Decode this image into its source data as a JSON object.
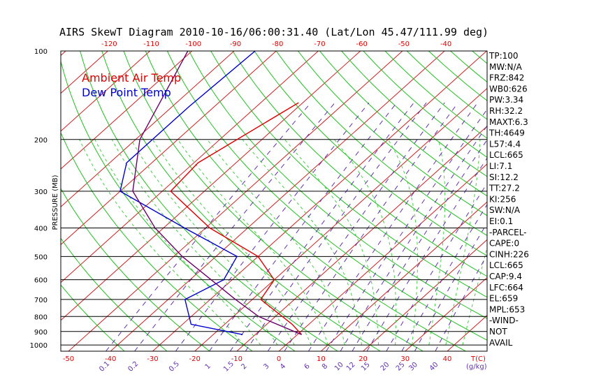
{
  "title": "AIRS SkewT Diagram 2010-10-16/06:00:31.40 (Lat/Lon 45.47/111.99 deg)",
  "chart_data": {
    "type": "line",
    "title": "AIRS SkewT Diagram 2010-10-16/06:00:31.40 (Lat/Lon 45.47/111.99 deg)",
    "ylabel": "PRESSURE (MB)",
    "xlabel": "T(C)",
    "mixing_ratio_unit": "(g/kg)",
    "pressure_levels": [
      100,
      200,
      300,
      400,
      500,
      600,
      700,
      800,
      900,
      1000
    ],
    "pressure_tick_labels": [
      "100",
      "200",
      "300",
      "400",
      "500",
      "600",
      "700",
      "800",
      "900",
      "1000"
    ],
    "bottom_temp_ticks": [
      -50,
      -40,
      -30,
      -20,
      -10,
      0,
      10,
      20,
      30,
      40
    ],
    "bottom_temp_labels": [
      "-50",
      "-40",
      "-30",
      "-20",
      "-10",
      "0",
      "10",
      "20",
      "30",
      "40"
    ],
    "top_temp_ticks": [
      -120,
      -110,
      -100,
      -90,
      -80,
      -70,
      -60,
      -50,
      -40
    ],
    "top_temp_labels": [
      "-120",
      "-110",
      "-100",
      "-90",
      "-80",
      "-70",
      "-60",
      "-50",
      "-40"
    ],
    "mixing_ratio_labels": [
      "0.1",
      "0.2",
      "0.5",
      "1",
      "1.5",
      "2",
      "3",
      "4",
      "6",
      "8",
      "10",
      "12",
      "15",
      "20",
      "25",
      "30",
      "40"
    ],
    "series": [
      {
        "name": "Ambient Air Temp",
        "color": "#e00000",
        "points": [
          [
            150,
            -61
          ],
          [
            240,
            -69
          ],
          [
            300,
            -68
          ],
          [
            400,
            -49
          ],
          [
            500,
            -30
          ],
          [
            600,
            -20
          ],
          [
            700,
            -18
          ],
          [
            850,
            -4
          ],
          [
            922,
            1
          ]
        ]
      },
      {
        "name": "Dew Point Temp",
        "color": "#0000d0",
        "points": [
          [
            100,
            -85
          ],
          [
            155,
            -86
          ],
          [
            240,
            -86
          ],
          [
            300,
            -80
          ],
          [
            400,
            -55
          ],
          [
            500,
            -35
          ],
          [
            600,
            -32
          ],
          [
            700,
            -36
          ],
          [
            850,
            -28
          ],
          [
            922,
            -13
          ]
        ]
      },
      {
        "name": "",
        "color": "#6a006a",
        "points": [
          [
            100,
            -101
          ],
          [
            200,
            -89
          ],
          [
            300,
            -77
          ],
          [
            400,
            -62
          ],
          [
            500,
            -48
          ],
          [
            600,
            -35
          ],
          [
            700,
            -24
          ],
          [
            800,
            -14
          ],
          [
            922,
            1
          ]
        ]
      }
    ],
    "grid": true,
    "legend": "top-left"
  },
  "legend": {
    "ambient": "Ambient Air Temp",
    "dew": "Dew Point Temp"
  },
  "side_panel": [
    "TP:100",
    "MW:N/A",
    "FRZ:842",
    "WB0:626",
    "PW:3.34",
    "RH:32.2",
    "MAXT:6.3",
    "TH:4649",
    "L57:4.4",
    "LCL:665",
    "LI:7.1",
    "SI:12.2",
    "TT:27.2",
    "KI:256",
    "SW:N/A",
    "EI:0.1",
    "-PARCEL-",
    "CAPE:0",
    "CINH:226",
    "LCL:665",
    "CAP:9.4",
    "LFC:664",
    "EL:659",
    "MPL:653",
    "-WIND-",
    "NOT",
    "AVAIL"
  ],
  "colors": {
    "isotherm": "#d02020",
    "dry_adiabat": "#20c020",
    "moist_adiabat": "#40d040",
    "mixing_ratio": "#6030b0",
    "isobar": "#000000"
  }
}
